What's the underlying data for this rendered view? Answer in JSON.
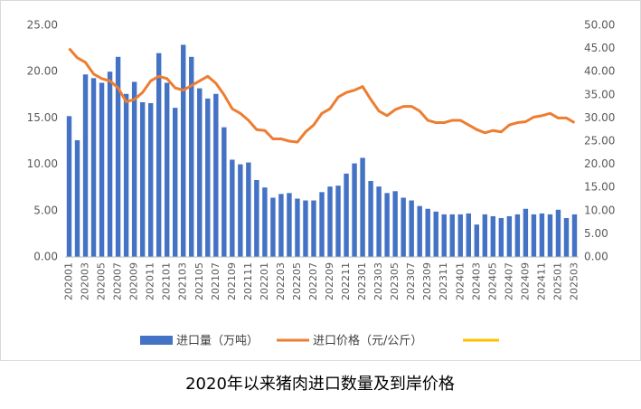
{
  "chart_data": {
    "type": "bar_line",
    "title": "2020年以来猪肉进口数量及到岸价格",
    "categories": [
      "202001",
      null,
      "202003",
      null,
      "202005",
      null,
      "202007",
      null,
      "202009",
      null,
      "202011",
      null,
      "202101",
      null,
      "202103",
      null,
      "202105",
      null,
      "202107",
      null,
      "202109",
      null,
      "202111",
      null,
      "202201",
      null,
      "202203",
      null,
      "202205",
      null,
      "202207",
      null,
      "202209",
      null,
      "202211",
      null,
      "202301",
      null,
      "202303",
      null,
      "202305",
      null,
      "202307",
      null,
      "202309",
      null,
      "202311",
      null,
      "202401",
      null,
      "202403",
      null,
      "202405",
      null,
      "202407",
      null,
      "202409",
      null,
      "202411",
      null,
      "202501",
      null,
      "202503"
    ],
    "series": [
      {
        "name": "进口量（万吨）",
        "color": "#4472c4",
        "type": "bar",
        "values": [
          15.2,
          12.6,
          19.7,
          19.3,
          18.8,
          20.0,
          21.6,
          17.6,
          18.9,
          16.7,
          16.6,
          22.0,
          18.8,
          16.1,
          22.9,
          21.6,
          18.2,
          17.1,
          17.6,
          14.0,
          10.5,
          10.0,
          10.2,
          8.3,
          7.5,
          6.4,
          6.8,
          6.9,
          6.3,
          6.1,
          6.1,
          7.0,
          7.6,
          7.7,
          9.0,
          10.1,
          10.7,
          8.2,
          7.6,
          6.9,
          7.1,
          6.4,
          6.1,
          5.5,
          5.2,
          4.9,
          4.6,
          4.6,
          4.6,
          4.7,
          3.5,
          4.6,
          4.4,
          4.2,
          4.4,
          4.6,
          5.2,
          4.6,
          4.7,
          4.6,
          5.1,
          4.2,
          4.6
        ]
      },
      {
        "name": "进口价格（元/公斤）",
        "color": "#ed7d31",
        "type": "line",
        "axis": "y2",
        "values": [
          45,
          43,
          42,
          39.5,
          38.5,
          38,
          36.5,
          33.5,
          34,
          35.5,
          38,
          39,
          38.5,
          36.5,
          36,
          37,
          38,
          39,
          37.5,
          35,
          32,
          31,
          29.5,
          27.5,
          27.3,
          25.5,
          25.5,
          25,
          24.8,
          27,
          28.5,
          31,
          32,
          34.5,
          35.5,
          36,
          36.8,
          34,
          31.5,
          30.5,
          31.8,
          32.5,
          32.5,
          31.5,
          29.5,
          29,
          29,
          29.5,
          29.5,
          28.5,
          27.5,
          26.8,
          27.3,
          27,
          28.5,
          29,
          29.2,
          30.2,
          30.5,
          31,
          30,
          30,
          29
        ]
      }
    ],
    "ylim": [
      0,
      25
    ],
    "yticks": [
      {
        "value": 0,
        "label": "0.00"
      },
      {
        "value": 5,
        "label": "5.00"
      },
      {
        "value": 10,
        "label": "10.00"
      },
      {
        "value": 15,
        "label": "15.00"
      },
      {
        "value": 20,
        "label": "20.00"
      },
      {
        "value": 25,
        "label": "25.00"
      }
    ],
    "y2lim": [
      0,
      50
    ],
    "y2ticks": [
      {
        "value": 0,
        "label": "0.00"
      },
      {
        "value": 5,
        "label": "5.00"
      },
      {
        "value": 10,
        "label": "10.00"
      },
      {
        "value": 15,
        "label": "15.00"
      },
      {
        "value": 20,
        "label": "20.00"
      },
      {
        "value": 25,
        "label": "25.00"
      },
      {
        "value": 30,
        "label": "30.00"
      },
      {
        "value": 35,
        "label": "35.00"
      },
      {
        "value": 40,
        "label": "40.00"
      },
      {
        "value": 45,
        "label": "45.00"
      },
      {
        "value": 50,
        "label": "50.00"
      }
    ]
  }
}
